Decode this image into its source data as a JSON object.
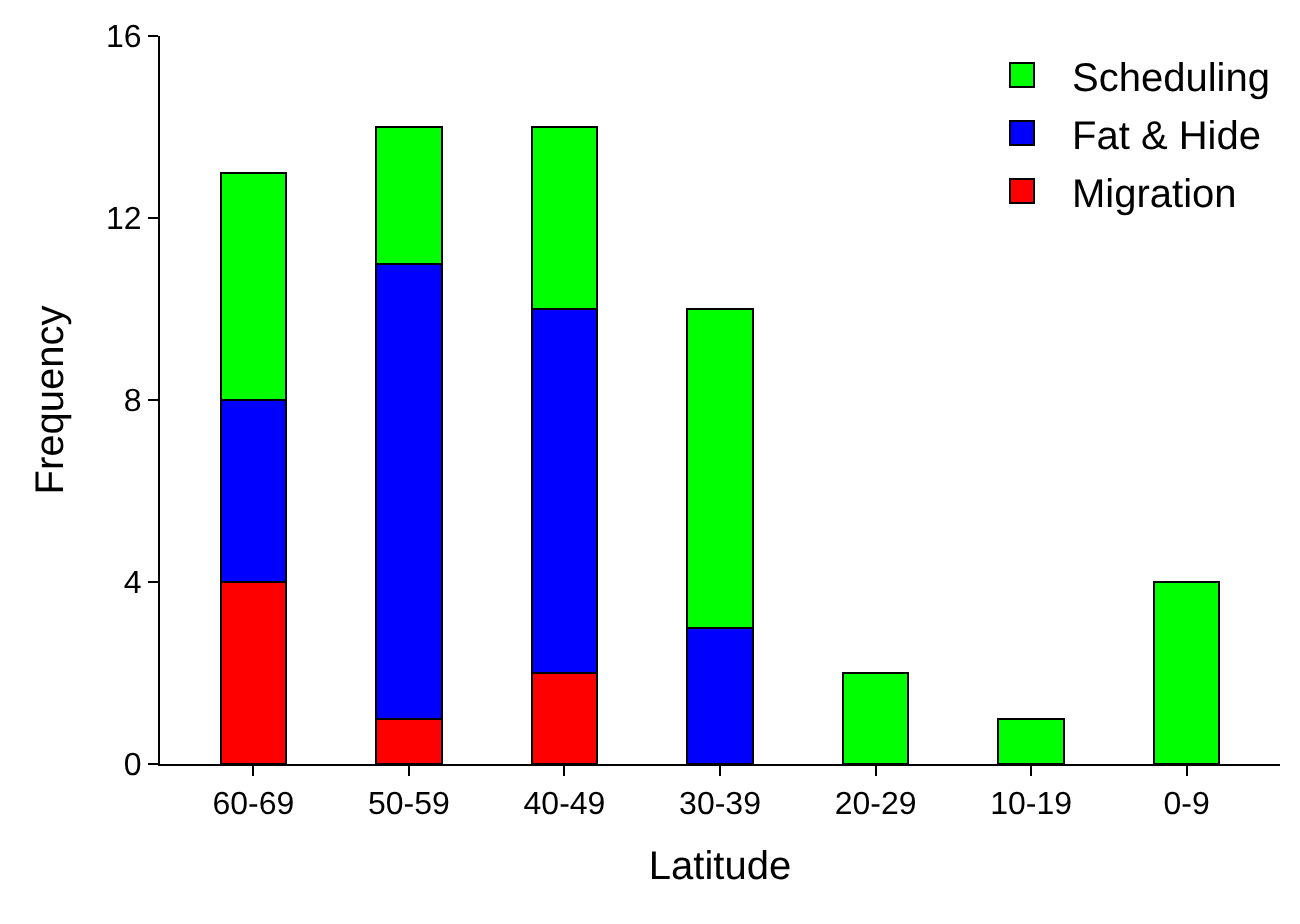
{
  "chart_data": {
    "type": "bar",
    "stacked": true,
    "xlabel": "Latitude",
    "ylabel": "Frequency",
    "categories": [
      "60-69",
      "50-59",
      "40-49",
      "30-39",
      "20-29",
      "10-19",
      "0-9"
    ],
    "series": [
      {
        "name": "Migration",
        "color": "#ff0000",
        "values": [
          4,
          1,
          2,
          0,
          0,
          0,
          0
        ]
      },
      {
        "name": "Fat & Hide",
        "color": "#0000ff",
        "values": [
          4,
          10,
          8,
          3,
          0,
          0,
          0
        ]
      },
      {
        "name": "Scheduling",
        "color": "#00ff00",
        "values": [
          5,
          3,
          4,
          7,
          2,
          1,
          4
        ]
      }
    ],
    "ylim": [
      0,
      16
    ],
    "yticks": [
      0,
      4,
      8,
      12,
      16
    ],
    "legend": "top right"
  }
}
